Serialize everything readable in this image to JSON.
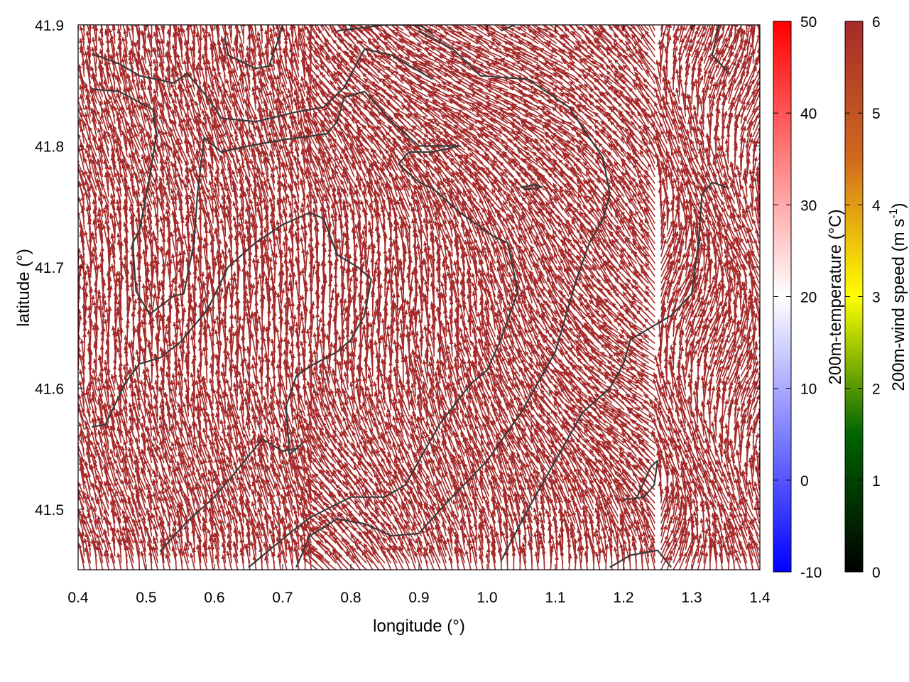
{
  "chart_data": {
    "type": "vector-field",
    "xlabel": "longitude (°)",
    "ylabel": "latitude (°)",
    "xlim": [
      0.4,
      1.4
    ],
    "ylim": [
      41.45,
      41.9
    ],
    "xticks": [
      {
        "v": 0.4,
        "label": "0.4"
      },
      {
        "v": 0.5,
        "label": "0.5"
      },
      {
        "v": 0.6,
        "label": "0.6"
      },
      {
        "v": 0.7,
        "label": "0.7"
      },
      {
        "v": 0.8,
        "label": "0.8"
      },
      {
        "v": 0.9,
        "label": "0.9"
      },
      {
        "v": 1.0,
        "label": "1.0"
      },
      {
        "v": 1.1,
        "label": "1.1"
      },
      {
        "v": 1.2,
        "label": "1.2"
      },
      {
        "v": 1.3,
        "label": "1.3"
      },
      {
        "v": 1.4,
        "label": "1.4"
      }
    ],
    "yticks": [
      {
        "v": 41.5,
        "label": "41.5"
      },
      {
        "v": 41.6,
        "label": "41.6"
      },
      {
        "v": 41.7,
        "label": "41.7"
      },
      {
        "v": 41.8,
        "label": "41.8"
      },
      {
        "v": 41.9,
        "label": "41.9"
      }
    ],
    "vector_color": "#a52a2a",
    "contour_color": "#3a3a3a",
    "colorbars": [
      {
        "label": "200m-temperature (°C)",
        "range": [
          -10,
          50
        ],
        "ticks": [
          {
            "v": -10,
            "label": "-10"
          },
          {
            "v": 0,
            "label": "0"
          },
          {
            "v": 10,
            "label": "10"
          },
          {
            "v": 20,
            "label": "20"
          },
          {
            "v": 30,
            "label": "30"
          },
          {
            "v": 40,
            "label": "40"
          },
          {
            "v": 50,
            "label": "50"
          }
        ],
        "colors": [
          "#0000ff",
          "#ffffff",
          "#ff0000"
        ]
      },
      {
        "label_main": "200m-wind speed (m s",
        "label_sup": "-1",
        "label_end": ")",
        "range": [
          0,
          6
        ],
        "ticks": [
          {
            "v": 0,
            "label": "0"
          },
          {
            "v": 1,
            "label": "1"
          },
          {
            "v": 2,
            "label": "2"
          },
          {
            "v": 3,
            "label": "3"
          },
          {
            "v": 4,
            "label": "4"
          },
          {
            "v": 5,
            "label": "5"
          },
          {
            "v": 6,
            "label": "6"
          }
        ],
        "colors": [
          "#000000",
          "#006400",
          "#ffff00",
          "#d2691e",
          "#a52a2a"
        ]
      }
    ],
    "contours": [
      [
        [
          0.42,
          41.876
        ],
        [
          0.46,
          41.868
        ],
        [
          0.49,
          41.858
        ],
        [
          0.54,
          41.852
        ],
        [
          0.56,
          41.86
        ],
        [
          0.59,
          41.84
        ],
        [
          0.61,
          41.823
        ],
        [
          0.66,
          41.82
        ],
        [
          0.72,
          41.828
        ],
        [
          0.76,
          41.832
        ],
        [
          0.79,
          41.848
        ],
        [
          0.82,
          41.88
        ],
        [
          0.86,
          41.875
        ],
        [
          0.92,
          41.855
        ]
      ],
      [
        [
          0.42,
          41.847
        ],
        [
          0.46,
          41.845
        ],
        [
          0.51,
          41.83
        ],
        [
          0.515,
          41.81
        ],
        [
          0.505,
          41.775
        ],
        [
          0.49,
          41.73
        ],
        [
          0.48,
          41.72
        ],
        [
          0.485,
          41.68
        ],
        [
          0.505,
          41.661
        ],
        [
          0.54,
          41.676
        ],
        [
          0.555,
          41.678
        ],
        [
          0.57,
          41.72
        ],
        [
          0.575,
          41.76
        ],
        [
          0.585,
          41.807
        ],
        [
          0.61,
          41.795
        ],
        [
          0.65,
          41.8
        ],
        [
          0.7,
          41.805
        ],
        [
          0.765,
          41.81
        ],
        [
          0.78,
          41.82
        ],
        [
          0.79,
          41.84
        ],
        [
          0.82,
          41.845
        ],
        [
          0.86,
          41.82
        ],
        [
          0.9,
          41.8
        ],
        [
          0.96,
          41.8
        ],
        [
          0.92,
          41.795
        ],
        [
          0.885,
          41.795
        ],
        [
          0.87,
          41.785
        ],
        [
          0.9,
          41.77
        ],
        [
          0.92,
          41.765
        ],
        [
          0.96,
          41.745
        ],
        [
          1.01,
          41.725
        ],
        [
          1.03,
          41.72
        ],
        [
          1.045,
          41.68
        ],
        [
          1.02,
          41.64
        ],
        [
          1.0,
          41.615
        ],
        [
          0.975,
          41.603
        ],
        [
          0.93,
          41.57
        ],
        [
          0.88,
          41.52
        ],
        [
          0.85,
          41.51
        ],
        [
          0.8,
          41.51
        ],
        [
          0.74,
          41.493
        ],
        [
          0.71,
          41.48
        ],
        [
          0.68,
          41.466
        ],
        [
          0.65,
          41.452
        ]
      ],
      [
        [
          0.615,
          41.89
        ],
        [
          0.62,
          41.875
        ],
        [
          0.66,
          41.864
        ],
        [
          0.68,
          41.866
        ],
        [
          0.695,
          41.89
        ],
        [
          0.7,
          41.9
        ]
      ],
      [
        [
          0.78,
          41.895
        ],
        [
          0.85,
          41.9
        ],
        [
          0.9,
          41.9
        ],
        [
          0.92,
          41.893
        ]
      ],
      [
        [
          1.02,
          41.895
        ],
        [
          1.04,
          41.9
        ]
      ],
      [
        [
          1.34,
          41.9
        ],
        [
          1.33,
          41.875
        ],
        [
          1.355,
          41.86
        ]
      ],
      [
        [
          0.42,
          41.568
        ],
        [
          0.44,
          41.57
        ],
        [
          0.47,
          41.605
        ],
        [
          0.49,
          41.62
        ],
        [
          0.52,
          41.625
        ],
        [
          0.55,
          41.638
        ],
        [
          0.59,
          41.665
        ],
        [
          0.62,
          41.7
        ],
        [
          0.63,
          41.705
        ],
        [
          0.66,
          41.72
        ],
        [
          0.7,
          41.735
        ],
        [
          0.74,
          41.745
        ],
        [
          0.76,
          41.74
        ],
        [
          0.78,
          41.71
        ],
        [
          0.81,
          41.7
        ],
        [
          0.83,
          41.69
        ],
        [
          0.82,
          41.66
        ],
        [
          0.8,
          41.64
        ],
        [
          0.78,
          41.63
        ],
        [
          0.74,
          41.618
        ],
        [
          0.72,
          41.61
        ],
        [
          0.705,
          41.585
        ],
        [
          0.71,
          41.545
        ],
        [
          0.73,
          41.555
        ],
        [
          0.72,
          41.55
        ],
        [
          0.7,
          41.548
        ],
        [
          0.67,
          41.558
        ],
        [
          0.63,
          41.53
        ],
        [
          0.6,
          41.51
        ],
        [
          0.58,
          41.5
        ],
        [
          0.56,
          41.49
        ],
        [
          0.52,
          41.465
        ]
      ],
      [
        [
          0.72,
          41.452
        ],
        [
          0.74,
          41.478
        ],
        [
          0.78,
          41.492
        ],
        [
          0.82,
          41.488
        ],
        [
          0.86,
          41.478
        ],
        [
          0.9,
          41.48
        ],
        [
          0.94,
          41.505
        ],
        [
          1.0,
          41.54
        ],
        [
          1.05,
          41.58
        ],
        [
          1.1,
          41.63
        ],
        [
          1.13,
          41.688
        ],
        [
          1.15,
          41.72
        ],
        [
          1.17,
          41.74
        ],
        [
          1.18,
          41.76
        ],
        [
          1.17,
          41.79
        ],
        [
          1.12,
          41.832
        ],
        [
          1.06,
          41.855
        ],
        [
          0.99,
          41.858
        ],
        [
          0.95,
          41.88
        ],
        [
          0.9,
          41.895
        ]
      ],
      [
        [
          1.06,
          41.764
        ],
        [
          1.08,
          41.766
        ],
        [
          1.07,
          41.768
        ],
        [
          1.05,
          41.766
        ],
        [
          1.06,
          41.764
        ]
      ],
      [
        [
          1.02,
          41.457
        ],
        [
          1.06,
          41.5
        ],
        [
          1.1,
          41.54
        ],
        [
          1.14,
          41.58
        ],
        [
          1.18,
          41.6
        ],
        [
          1.2,
          41.62
        ],
        [
          1.21,
          41.64
        ],
        [
          1.24,
          41.65
        ],
        [
          1.27,
          41.66
        ],
        [
          1.3,
          41.678
        ],
        [
          1.31,
          41.72
        ],
        [
          1.315,
          41.76
        ],
        [
          1.33,
          41.77
        ],
        [
          1.355,
          41.765
        ]
      ],
      [
        [
          1.18,
          41.452
        ],
        [
          1.21,
          41.462
        ],
        [
          1.25,
          41.466
        ],
        [
          1.27,
          41.452
        ]
      ],
      [
        [
          1.2,
          41.508
        ],
        [
          1.23,
          41.51
        ],
        [
          1.245,
          41.52
        ],
        [
          1.25,
          41.54
        ],
        [
          1.24,
          41.535
        ],
        [
          1.22,
          41.51
        ]
      ]
    ]
  }
}
